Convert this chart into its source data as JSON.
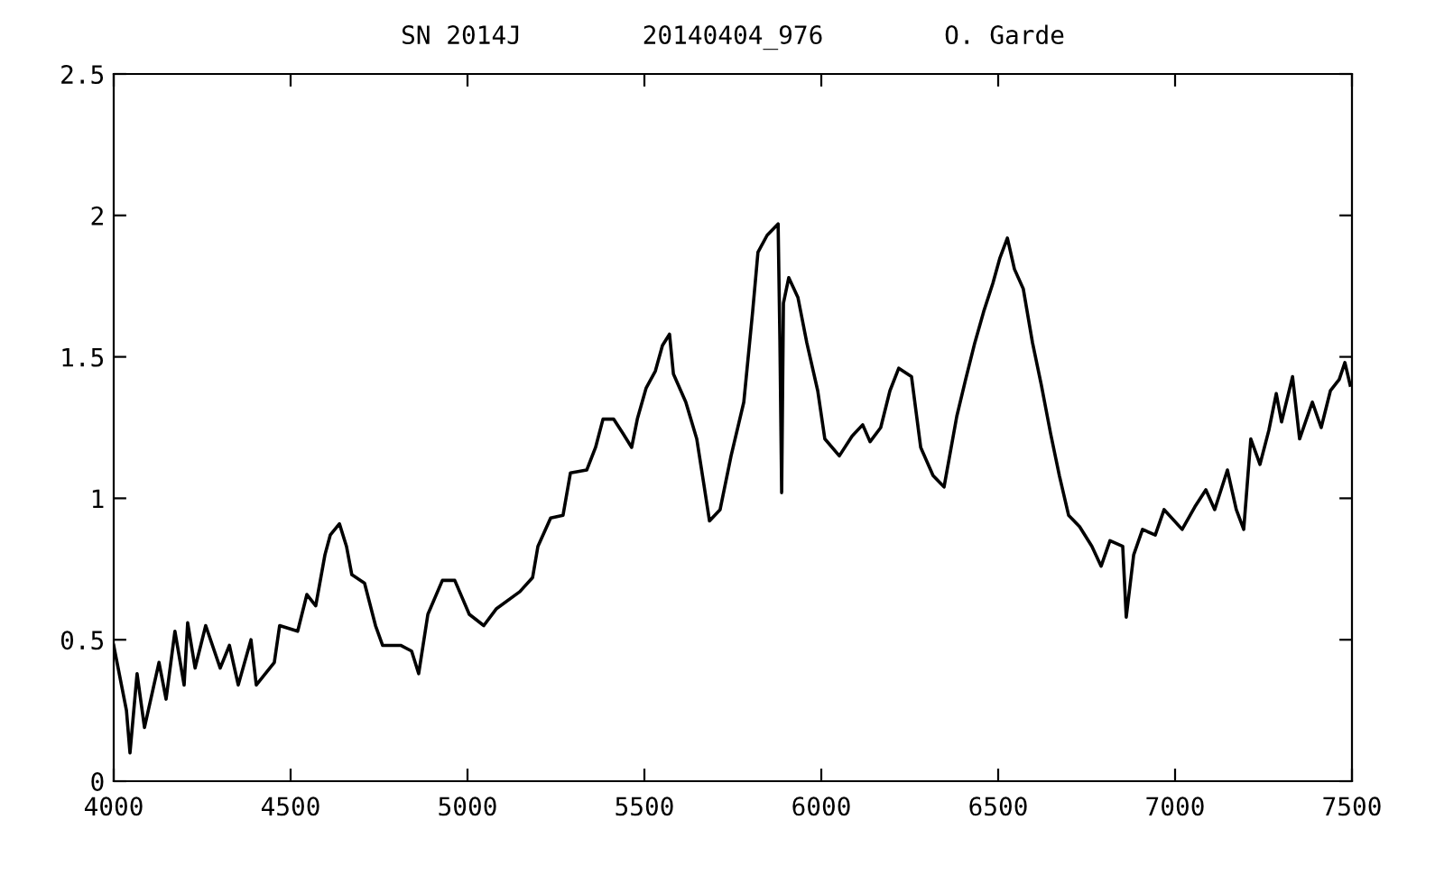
{
  "chart_data": {
    "type": "line",
    "title": "SN 2014J        20140404_976        O. Garde",
    "x": [
      4000,
      4036,
      4046,
      4066,
      4087,
      4128,
      4148,
      4173,
      4199,
      4209,
      4230,
      4260,
      4301,
      4327,
      4352,
      4388,
      4403,
      4454,
      4469,
      4520,
      4546,
      4571,
      4597,
      4612,
      4638,
      4658,
      4673,
      4709,
      4740,
      4760,
      4811,
      4842,
      4862,
      4888,
      4929,
      4964,
      5005,
      5046,
      5082,
      5148,
      5184,
      5199,
      5235,
      5270,
      5291,
      5337,
      5362,
      5383,
      5413,
      5439,
      5464,
      5480,
      5505,
      5531,
      5551,
      5571,
      5582,
      5617,
      5648,
      5668,
      5684,
      5714,
      5745,
      5781,
      5806,
      5821,
      5847,
      5878,
      5883,
      5888,
      5893,
      5908,
      5934,
      5959,
      5990,
      6010,
      6051,
      6087,
      6117,
      6138,
      6168,
      6194,
      6219,
      6255,
      6281,
      6316,
      6347,
      6383,
      6408,
      6434,
      6459,
      6485,
      6505,
      6526,
      6546,
      6571,
      6597,
      6622,
      6648,
      6673,
      6699,
      6730,
      6765,
      6791,
      6816,
      6852,
      6862,
      6883,
      6908,
      6944,
      6969,
      7020,
      7056,
      7087,
      7112,
      7148,
      7173,
      7194,
      7214,
      7240,
      7265,
      7286,
      7301,
      7332,
      7352,
      7388,
      7413,
      7439,
      7464,
      7480,
      7495
    ],
    "series": [
      {
        "color": "#000000",
        "values": [
          0.48,
          0.25,
          0.1,
          0.38,
          0.19,
          0.42,
          0.29,
          0.53,
          0.34,
          0.56,
          0.4,
          0.55,
          0.4,
          0.48,
          0.34,
          0.5,
          0.34,
          0.42,
          0.55,
          0.53,
          0.66,
          0.62,
          0.8,
          0.87,
          0.91,
          0.83,
          0.73,
          0.7,
          0.55,
          0.48,
          0.48,
          0.46,
          0.38,
          0.59,
          0.71,
          0.71,
          0.59,
          0.55,
          0.61,
          0.67,
          0.72,
          0.83,
          0.93,
          0.94,
          1.09,
          1.1,
          1.18,
          1.28,
          1.28,
          1.23,
          1.18,
          1.28,
          1.39,
          1.45,
          1.54,
          1.58,
          1.44,
          1.34,
          1.21,
          1.05,
          0.92,
          0.96,
          1.15,
          1.34,
          1.66,
          1.87,
          1.93,
          1.97,
          1.56,
          1.02,
          1.69,
          1.78,
          1.71,
          1.55,
          1.38,
          1.21,
          1.15,
          1.22,
          1.26,
          1.2,
          1.25,
          1.38,
          1.46,
          1.43,
          1.18,
          1.08,
          1.04,
          1.29,
          1.42,
          1.55,
          1.66,
          1.76,
          1.85,
          1.92,
          1.81,
          1.74,
          1.55,
          1.4,
          1.23,
          1.08,
          0.94,
          0.9,
          0.83,
          0.76,
          0.85,
          0.83,
          0.58,
          0.8,
          0.89,
          0.87,
          0.96,
          0.89,
          0.97,
          1.03,
          0.96,
          1.1,
          0.96,
          0.89,
          1.21,
          1.12,
          1.24,
          1.37,
          1.27,
          1.43,
          1.21,
          1.34,
          1.25,
          1.38,
          1.42,
          1.48,
          1.4
        ]
      }
    ],
    "xlim": [
      4000,
      7500
    ],
    "xticks": [
      4000,
      4500,
      5000,
      5500,
      6000,
      6500,
      7000,
      7500
    ],
    "ylim": [
      0,
      2.5
    ],
    "yticks": [
      0,
      0.5,
      1,
      1.5,
      2,
      2.5
    ],
    "grid": false,
    "legend": false,
    "marker": "none",
    "line_style": "solid"
  }
}
